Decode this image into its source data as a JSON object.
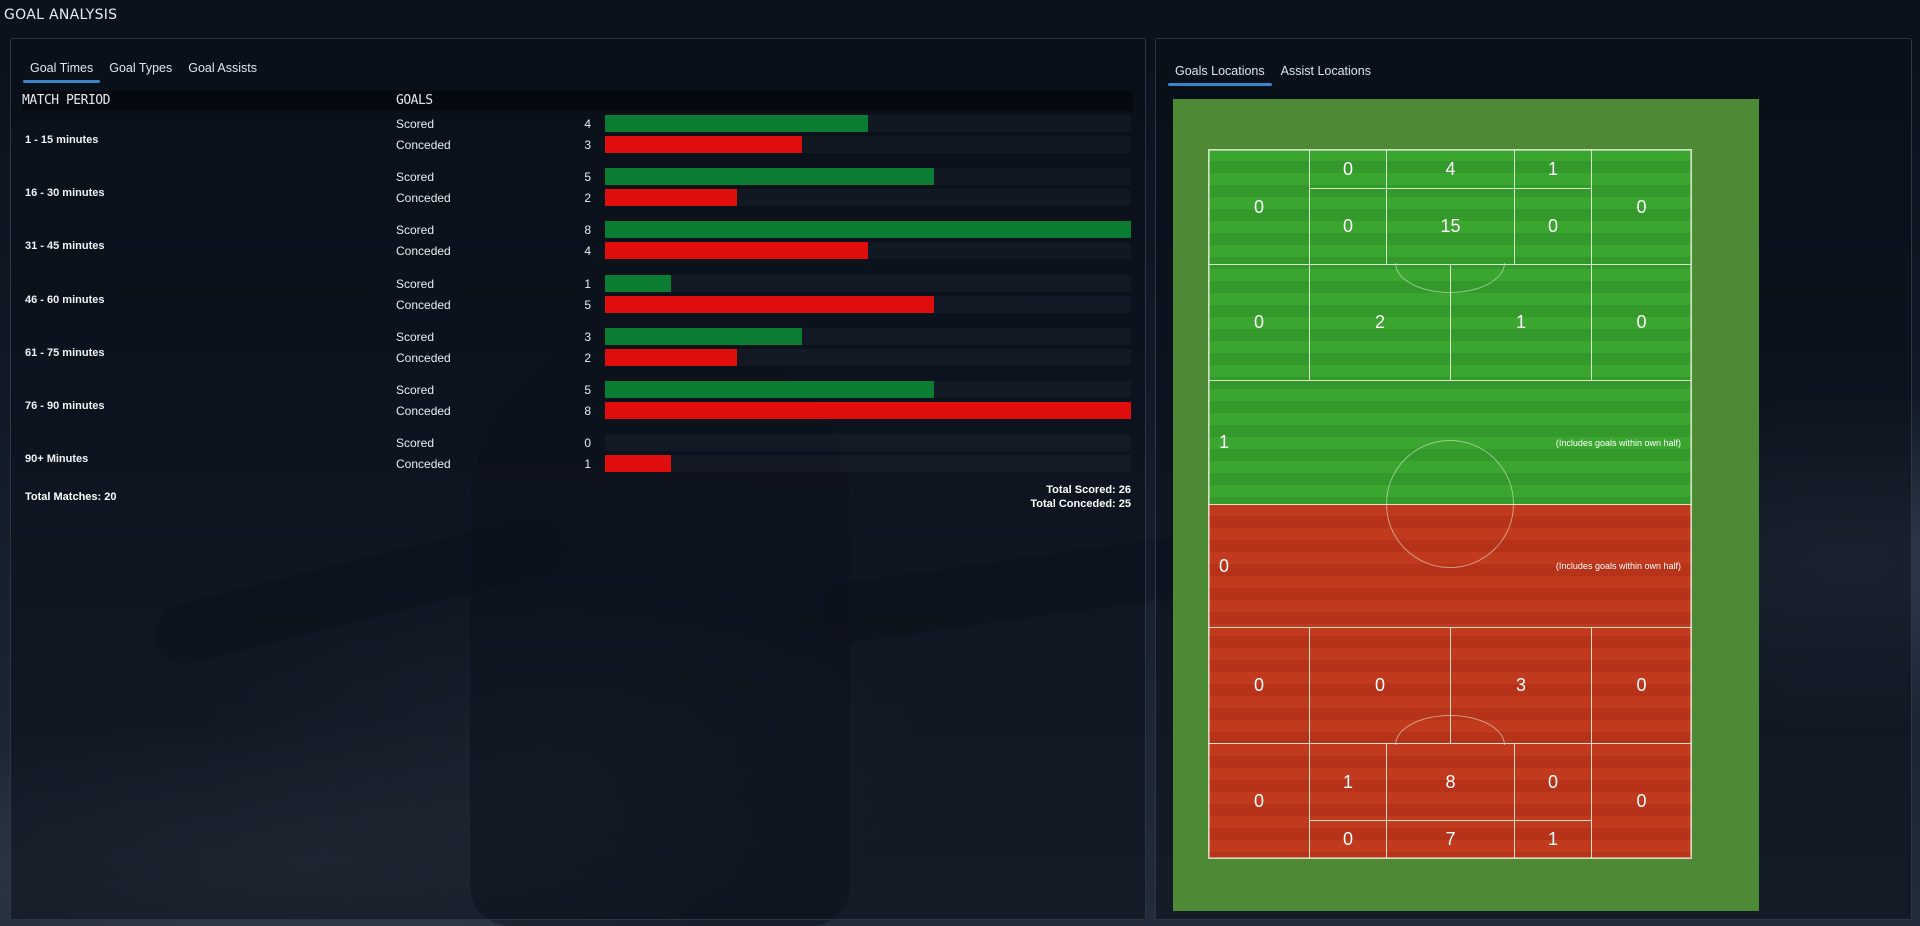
{
  "page_title": "GOAL ANALYSIS",
  "left_tabs": [
    "Goal Times",
    "Goal Types",
    "Goal Assists"
  ],
  "right_tabs": [
    "Goals Locations",
    "Assist Locations"
  ],
  "table": {
    "col_period": "MATCH PERIOD",
    "col_goals": "GOALS",
    "periods": [
      {
        "label": "1 - 15 minutes",
        "scored_label": "Scored",
        "scored": 4,
        "conceded_label": "Conceded",
        "conceded": 3
      },
      {
        "label": "16 - 30 minutes",
        "scored_label": "Scored",
        "scored": 5,
        "conceded_label": "Conceded",
        "conceded": 2
      },
      {
        "label": "31 - 45 minutes",
        "scored_label": "Scored",
        "scored": 8,
        "conceded_label": "Conceded",
        "conceded": 4
      },
      {
        "label": "46 - 60 minutes",
        "scored_label": "Scored",
        "scored": 1,
        "conceded_label": "Conceded",
        "conceded": 5
      },
      {
        "label": "61 - 75 minutes",
        "scored_label": "Scored",
        "scored": 3,
        "conceded_label": "Conceded",
        "conceded": 2
      },
      {
        "label": "76 - 90 minutes",
        "scored_label": "Scored",
        "scored": 5,
        "conceded_label": "Conceded",
        "conceded": 8
      },
      {
        "label": "90+ Minutes",
        "scored_label": "Scored",
        "scored": 0,
        "conceded_label": "Conceded",
        "conceded": 1
      }
    ],
    "bar_max": 8,
    "total_matches": "Total Matches: 20",
    "total_scored": "Total Scored: 26",
    "total_conceded": "Total Conceded: 25"
  },
  "pitch": {
    "colors": {
      "attack": "#3aa630",
      "defence": "#c23a1d",
      "border": "#4e8a35"
    },
    "attack_box": {
      "six_yard_left": "0",
      "six_yard_center": "4",
      "six_yard_right": "1",
      "box_left": "0",
      "box_center": "15",
      "box_right": "0",
      "wing_left": "0",
      "wing_right": "0"
    },
    "attack_mid": {
      "wing_left": "0",
      "center_left": "2",
      "center_right": "1",
      "wing_right": "0"
    },
    "attack_half": {
      "value": "1",
      "note": "(Includes goals within own half)"
    },
    "defence_half": {
      "value": "0",
      "note": "(Includes goals within own half)"
    },
    "defence_mid": {
      "wing_left": "0",
      "center_left": "0",
      "center_right": "3",
      "wing_right": "0"
    },
    "defence_box": {
      "wing_left": "0",
      "box_left": "1",
      "box_center": "8",
      "box_right": "0",
      "wing_right": "0",
      "six_yard_left": "0",
      "six_yard_center": "7",
      "six_yard_right": "1"
    }
  }
}
